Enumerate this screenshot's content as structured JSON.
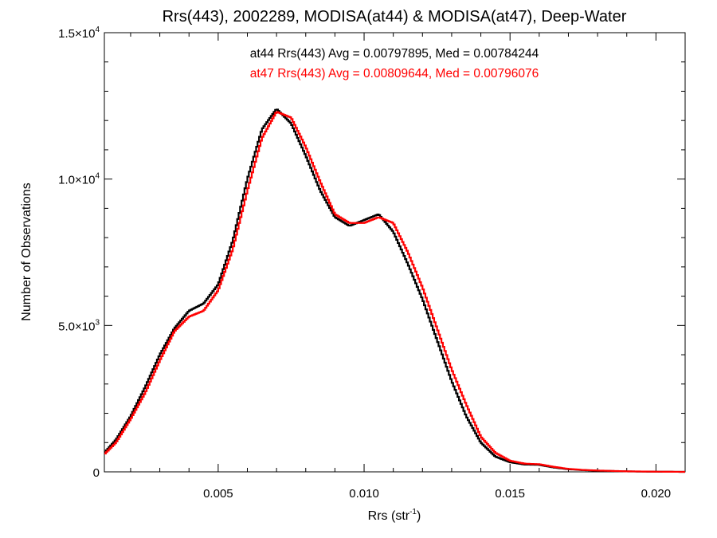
{
  "chart_data": {
    "type": "line",
    "title": "Rrs(443), 2002289, MODISA(at44) & MODISA(at47), Deep-Water",
    "xlabel": {
      "main": "Rrs (str",
      "sup": "-1",
      "close": ")"
    },
    "ylabel": "Number of Observations",
    "xlim": [
      0.0011,
      0.021
    ],
    "ylim": [
      0,
      15000
    ],
    "x_ticks": [
      {
        "value": 0.005,
        "label": "0.005"
      },
      {
        "value": 0.01,
        "label": "0.010"
      },
      {
        "value": 0.015,
        "label": "0.015"
      },
      {
        "value": 0.02,
        "label": "0.020"
      }
    ],
    "y_ticks": [
      {
        "value": 0,
        "label": "0",
        "sup": ""
      },
      {
        "value": 5000,
        "label": "5.0×10",
        "sup": "3"
      },
      {
        "value": 10000,
        "label": "1.0×10",
        "sup": "4"
      },
      {
        "value": 15000,
        "label": "1.5×10",
        "sup": "4"
      }
    ],
    "annotations": [
      {
        "text": "at44 Rrs(443) Avg = 0.00797895, Med = 0.00784244",
        "color": "#000000"
      },
      {
        "text": "at47 Rrs(443) Avg = 0.00809644, Med = 0.00796076",
        "color": "#ff0000"
      }
    ],
    "series": [
      {
        "color": "#000000",
        "x": [
          0.0011,
          0.0015,
          0.002,
          0.0025,
          0.003,
          0.0035,
          0.004,
          0.0045,
          0.005,
          0.0055,
          0.006,
          0.0065,
          0.007,
          0.0075,
          0.008,
          0.0085,
          0.009,
          0.0095,
          0.01,
          0.0105,
          0.011,
          0.0115,
          0.012,
          0.0125,
          0.013,
          0.0135,
          0.014,
          0.0145,
          0.015,
          0.0155,
          0.016,
          0.0165,
          0.017,
          0.0175,
          0.018,
          0.019,
          0.02,
          0.021
        ],
        "y": [
          650,
          1100,
          1900,
          2900,
          4000,
          4900,
          5500,
          5750,
          6400,
          7900,
          10000,
          11700,
          12400,
          11900,
          10800,
          9600,
          8700,
          8400,
          8600,
          8800,
          8200,
          7100,
          5900,
          4500,
          3100,
          1900,
          1000,
          520,
          330,
          250,
          240,
          150,
          90,
          60,
          40,
          15,
          5,
          0
        ]
      },
      {
        "color": "#ff0000",
        "x": [
          0.0011,
          0.0015,
          0.002,
          0.0025,
          0.003,
          0.0035,
          0.004,
          0.0045,
          0.005,
          0.0055,
          0.006,
          0.0065,
          0.007,
          0.0075,
          0.008,
          0.0085,
          0.009,
          0.0095,
          0.01,
          0.0105,
          0.011,
          0.0115,
          0.012,
          0.0125,
          0.013,
          0.0135,
          0.014,
          0.0145,
          0.015,
          0.0155,
          0.016,
          0.0165,
          0.017,
          0.0175,
          0.018,
          0.019,
          0.02,
          0.021
        ],
        "y": [
          600,
          1000,
          1800,
          2700,
          3800,
          4800,
          5300,
          5500,
          6200,
          7600,
          9600,
          11400,
          12300,
          12100,
          11100,
          9900,
          8800,
          8500,
          8500,
          8700,
          8500,
          7500,
          6300,
          4900,
          3500,
          2300,
          1200,
          650,
          380,
          280,
          260,
          170,
          100,
          65,
          45,
          18,
          6,
          0
        ]
      }
    ]
  }
}
